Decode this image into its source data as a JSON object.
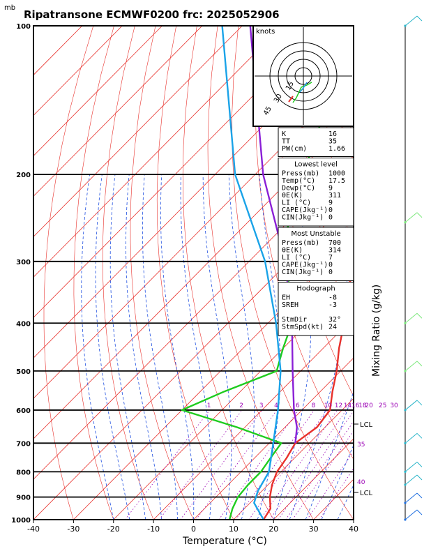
{
  "header": {
    "title": "Ripatransone ECMWF0200  frc: 2025052906",
    "unit_mb": "mb"
  },
  "chart_data": {
    "type": "line",
    "title": "Ripatransone ECMWF0200  frc: 2025052906",
    "xlabel": "Temperature (°C)",
    "ylabel": "",
    "right_label": "Mixing Ratio (g/kg)",
    "xlim": [
      -40,
      40
    ],
    "ylim": [
      1000,
      100
    ],
    "y_log_scale": true,
    "x_ticks": [
      "-40",
      "-30",
      "-20",
      "-10",
      "0",
      "10",
      "20",
      "30",
      "40"
    ],
    "y_ticks": [
      "100",
      "200",
      "300",
      "400",
      "500",
      "600",
      "700",
      "800",
      "900",
      "1000"
    ],
    "mixing_ratio_labels": [
      "1",
      "2",
      "3",
      "4",
      "6",
      "8",
      "10",
      "12",
      "14",
      "16",
      "18",
      "20",
      "25",
      "30"
    ],
    "lcl_labels": [
      "LCL",
      "LCL"
    ],
    "theta_e_labels": [
      "35",
      "40"
    ],
    "series": [
      {
        "name": "",
        "color": "#e8302b",
        "values": [
          {
            "p": 1000,
            "t": 17.5
          },
          {
            "p": 950,
            "t": 16.5
          },
          {
            "p": 900,
            "t": 13.5
          },
          {
            "p": 850,
            "t": 11.0
          },
          {
            "p": 800,
            "t": 9.0
          },
          {
            "p": 750,
            "t": 8.0
          },
          {
            "p": 700,
            "t": 6.5
          },
          {
            "p": 650,
            "t": 8.0
          },
          {
            "p": 600,
            "t": 7.0
          },
          {
            "p": 550,
            "t": 3.0
          },
          {
            "p": 500,
            "t": -1.0
          },
          {
            "p": 450,
            "t": -6.0
          },
          {
            "p": 400,
            "t": -11.0
          },
          {
            "p": 350,
            "t": -17.0
          },
          {
            "p": 300,
            "t": -24.0
          },
          {
            "p": 250,
            "t": -33.0
          },
          {
            "p": 200,
            "t": -38.0
          },
          {
            "p": 150,
            "t": -44.0
          },
          {
            "p": 100,
            "t": -52.0
          }
        ]
      },
      {
        "name": "",
        "color": "#1fcc1f",
        "values": [
          {
            "p": 1000,
            "t": 9.0
          },
          {
            "p": 950,
            "t": 7.0
          },
          {
            "p": 900,
            "t": 5.5
          },
          {
            "p": 850,
            "t": 5.0
          },
          {
            "p": 800,
            "t": 5.0
          },
          {
            "p": 750,
            "t": 4.0
          },
          {
            "p": 700,
            "t": 3.0
          },
          {
            "p": 650,
            "t": -12.0
          },
          {
            "p": 600,
            "t": -30.0
          },
          {
            "p": 550,
            "t": -24.0
          },
          {
            "p": 500,
            "t": -16.0
          },
          {
            "p": 450,
            "t": -20.0
          },
          {
            "p": 400,
            "t": -24.0
          },
          {
            "p": 350,
            "t": -32.0
          },
          {
            "p": 300,
            "t": -40.0
          },
          {
            "p": 250,
            "t": -50.0
          },
          {
            "p": 200,
            "t": -58.0
          },
          {
            "p": 150,
            "t": -68.0
          },
          {
            "p": 100,
            "t": -80.0
          }
        ]
      },
      {
        "name": "",
        "color": "#1aa3e8",
        "values": [
          {
            "p": 1000,
            "t": 17.5
          },
          {
            "p": 925,
            "t": 11.0
          },
          {
            "p": 875,
            "t": 9.0
          },
          {
            "p": 800,
            "t": 7.0
          },
          {
            "p": 700,
            "t": 1.0
          },
          {
            "p": 600,
            "t": -6.0
          },
          {
            "p": 500,
            "t": -15.0
          },
          {
            "p": 400,
            "t": -28.0
          },
          {
            "p": 300,
            "t": -46.0
          },
          {
            "p": 200,
            "t": -75.0
          },
          {
            "p": 100,
            "t": -115.0
          }
        ]
      },
      {
        "name": "",
        "color": "#8a1fd6",
        "values": [
          {
            "p": 700,
            "t": 6.5
          },
          {
            "p": 650,
            "t": 3.0
          },
          {
            "p": 600,
            "t": -2.0
          },
          {
            "p": 500,
            "t": -12.0
          },
          {
            "p": 400,
            "t": -24.0
          },
          {
            "p": 300,
            "t": -41.0
          },
          {
            "p": 200,
            "t": -68.0
          },
          {
            "p": 100,
            "t": -108.0
          }
        ]
      }
    ]
  },
  "hodograph": {
    "unit": "knots",
    "ring_labels": [
      "15",
      "30",
      "45"
    ]
  },
  "indices": {
    "rows": [
      {
        "label": "K",
        "value": "16"
      },
      {
        "label": "TT",
        "value": "35"
      },
      {
        "label": "PW(cm)",
        "value": "1.66"
      }
    ]
  },
  "lowest_level": {
    "heading": "Lowest level",
    "rows": [
      {
        "label": "Press(mb)",
        "value": "1000"
      },
      {
        "label": "Temp(°C)",
        "value": "17.5"
      },
      {
        "label": "Dewp(°C)",
        "value": "9"
      },
      {
        "label": "θE(K)",
        "value": "311"
      },
      {
        "label": "LI (°C)",
        "value": "9"
      },
      {
        "label": "CAPE(Jkg⁻¹)",
        "value": "0"
      },
      {
        "label": "CIN(Jkg⁻¹)",
        "value": "0"
      }
    ]
  },
  "most_unstable": {
    "heading": "Most Unstable",
    "rows": [
      {
        "label": "Press(mb)",
        "value": "700"
      },
      {
        "label": "θE(K)",
        "value": "314"
      },
      {
        "label": "LI (°C)",
        "value": "7"
      },
      {
        "label": "CAPE(Jkg⁻¹)",
        "value": "0"
      },
      {
        "label": "CIN(Jkg⁻¹)",
        "value": "0"
      }
    ]
  },
  "hodograph_box": {
    "heading": "Hodograph",
    "rows": [
      {
        "label": "EH",
        "value": "-8"
      },
      {
        "label": "SREH",
        "value": "-3"
      },
      {
        "label": "",
        "value": ""
      },
      {
        "label": "StmDir",
        "value": "32°"
      },
      {
        "label": "StmSpd(kt)",
        "value": "24"
      }
    ]
  },
  "colors": {
    "isotherm": "#e8302b",
    "dry_adiabat": "#e8302b",
    "moist_adiabat": "#1f4fe0",
    "mixing_ratio": "#9b00b5",
    "wind_barb": "#2ab5c9",
    "wind_barb_mid": "#7be87b"
  }
}
